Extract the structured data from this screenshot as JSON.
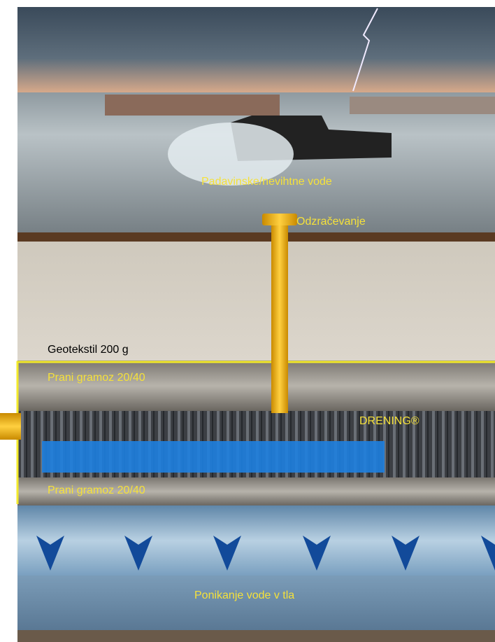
{
  "labels": {
    "stormwater": "Padavinske/nevihtne vode",
    "vent": "Odzračevanje",
    "geotextile": "Geotekstil 200 g",
    "gravel_top": "Prani gramoz 20/40",
    "drening": "DRENING®",
    "gravel_bottom": "Prani gramoz 20/40",
    "infiltration": "Ponikanje vode v tla"
  }
}
